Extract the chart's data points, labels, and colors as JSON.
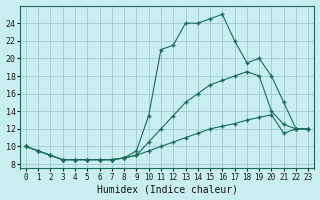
{
  "xlabel": "Humidex (Indice chaleur)",
  "bg_color": "#c8eef0",
  "grid_color": "#a0ccc8",
  "line_color": "#1a6b5a",
  "xlim": [
    -0.5,
    23.5
  ],
  "ylim": [
    7.5,
    26
  ],
  "xticks": [
    0,
    1,
    2,
    3,
    4,
    5,
    6,
    7,
    8,
    9,
    10,
    11,
    12,
    13,
    14,
    15,
    16,
    17,
    18,
    19,
    20,
    21,
    22,
    23
  ],
  "yticks": [
    8,
    10,
    12,
    14,
    16,
    18,
    20,
    22,
    24
  ],
  "series1_x": [
    0,
    1,
    2,
    3,
    4,
    5,
    6,
    7,
    8,
    9,
    10,
    11,
    12,
    13,
    14,
    15,
    16,
    17,
    18,
    19,
    20,
    21,
    22,
    23
  ],
  "series1_y": [
    10,
    9.5,
    9.0,
    8.5,
    8.5,
    8.5,
    8.5,
    8.5,
    8.7,
    9.0,
    9.5,
    10.0,
    10.5,
    11.0,
    11.5,
    12.0,
    12.3,
    12.6,
    13.0,
    13.3,
    13.6,
    11.5,
    12.0,
    12.0
  ],
  "series2_x": [
    0,
    1,
    2,
    3,
    4,
    5,
    6,
    7,
    8,
    9,
    10,
    11,
    12,
    13,
    14,
    15,
    16,
    17,
    18,
    19,
    20,
    21,
    22,
    23
  ],
  "series2_y": [
    10,
    9.5,
    9.0,
    8.5,
    8.5,
    8.5,
    8.5,
    8.5,
    8.7,
    9.0,
    10.5,
    12.0,
    13.5,
    15.0,
    16.0,
    17.0,
    17.5,
    18.0,
    18.5,
    18.0,
    14.0,
    12.5,
    12.0,
    12.0
  ],
  "series3_x": [
    0,
    1,
    2,
    3,
    4,
    5,
    6,
    7,
    8,
    9,
    10,
    11,
    12,
    13,
    14,
    15,
    16,
    17,
    18,
    19,
    20,
    21,
    22,
    23
  ],
  "series3_y": [
    10,
    9.5,
    9.0,
    8.5,
    8.5,
    8.5,
    8.5,
    8.5,
    8.7,
    9.5,
    13.5,
    21.0,
    21.5,
    24.0,
    24.0,
    24.5,
    25.0,
    22.0,
    19.5,
    20.0,
    18.0,
    15.0,
    12.0,
    12.0
  ]
}
